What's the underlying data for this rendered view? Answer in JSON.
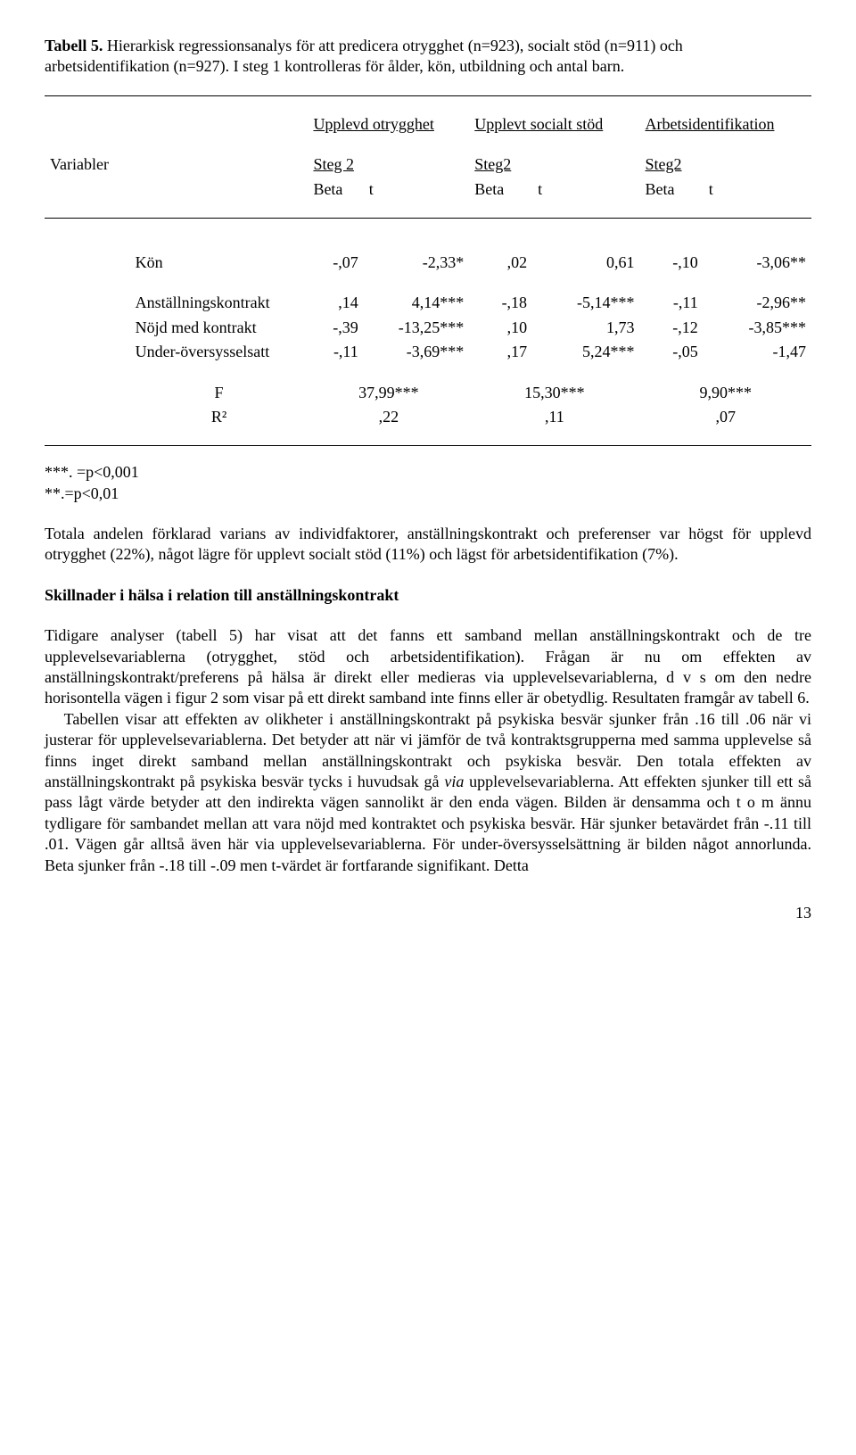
{
  "caption": {
    "label": "Tabell 5.",
    "text": "Hierarkisk regressionsanalys för att predicera otrygghet (n=923), socialt stöd (n=911) och arbetsidentifikation (n=927). I steg 1 kontrolleras för ålder, kön, utbildning och antal barn."
  },
  "table": {
    "group_headers": [
      "Upplevd otrygghet",
      "Upplevt socialt stöd",
      "Arbetsidentifikation"
    ],
    "var_label": "Variabler",
    "step_labels": [
      "Steg 2",
      "Steg2",
      "Steg2"
    ],
    "sub_labels": [
      "Beta",
      "t",
      "Beta",
      "t",
      "Beta",
      "t"
    ],
    "rows": [
      {
        "label": "Kön",
        "cells": [
          "-,07",
          "-2,33*",
          ",02",
          "0,61",
          "-,10",
          "-3,06**"
        ]
      },
      {
        "label": "Anställningskontrakt",
        "cells": [
          ",14",
          "4,14***",
          "-,18",
          "-5,14***",
          "-,11",
          "-2,96**"
        ]
      },
      {
        "label": "Nöjd med kontrakt",
        "cells": [
          "-,39",
          "-13,25***",
          ",10",
          "1,73",
          "-,12",
          "-3,85***"
        ]
      },
      {
        "label": "Under-översysselsatt",
        "cells": [
          "-,11",
          "-3,69***",
          ",17",
          "5,24***",
          "-,05",
          "-1,47"
        ]
      }
    ],
    "summary": [
      {
        "label": "F",
        "cells": [
          "37,99***",
          "15,30***",
          "9,90***"
        ]
      },
      {
        "label": "R²",
        "cells": [
          ",22",
          ",11",
          ",07"
        ]
      }
    ]
  },
  "footnotes": {
    "line1": "***. =p<0,001",
    "line2": "**.=p<0,01"
  },
  "para_total": "Totala andelen förklarad varians av individfaktorer, anställningskontrakt och preferenser var högst för upplevd otrygghet (22%), något lägre för upplevt socialt stöd (11%) och lägst för arbetsidentifikation (7%).",
  "subhead": "Skillnader i hälsa i relation till anställningskontrakt",
  "para_main_1a": "Tidigare analyser (tabell 5) har visat att det fanns ett samband mellan anställningskontrakt och de tre upplevelsevariablerna (otrygghet, stöd och arbetsidentifikation). Frågan är nu om effekten av anställningskontrakt/preferens på hälsa är direkt eller medieras via upplevelsevariablerna, d v s om den nedre horisontella vägen i figur 2 som visar på ett direkt samband inte finns eller är obetydlig. Resultaten framgår av tabell 6.",
  "para_main_1b_before": "Tabellen visar att effekten av olikheter i anställningskontrakt på psykiska besvär sjunker från .16 till .06 när vi justerar för upplevelsevariablerna. Det betyder att när vi jämför de två kontraktsgrupperna med samma upplevelse så finns inget direkt samband mellan anställningskontrakt och psykiska besvär. Den totala effekten av anställningskontrakt på psykiska besvär tycks i huvudsak gå ",
  "para_main_1b_italic": "via",
  "para_main_1b_after": " upplevelsevariablerna. Att effekten sjunker till ett så pass lågt värde betyder att den indirekta vägen sannolikt är den enda vägen. Bilden är densamma och t o m ännu tydligare för sambandet mellan att vara nöjd med kontraktet och psykiska besvär. Här sjunker betavärdet från -.11 till .01. Vägen går alltså även här via upplevelsevariablerna. För under-översysselsättning är bilden något annorlunda. Beta sjunker från -.18 till -.09 men t-värdet är fortfarande signifikant. Detta",
  "page_number": "13"
}
